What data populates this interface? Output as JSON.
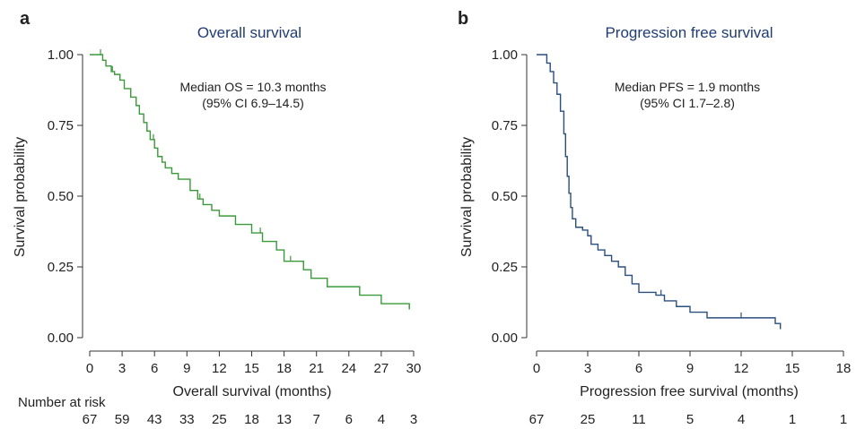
{
  "chart_data": [
    {
      "type": "line",
      "panel_label": "a",
      "title": "Overall survival",
      "xlabel": "Overall survival (months)",
      "ylabel": "Survival probability",
      "xlim": [
        0,
        30
      ],
      "ylim": [
        0,
        1
      ],
      "x_ticks": [
        "0",
        "3",
        "6",
        "9",
        "12",
        "15",
        "18",
        "21",
        "24",
        "27",
        "30"
      ],
      "y_ticks": [
        "0.00",
        "0.25",
        "0.50",
        "0.75",
        "1.00"
      ],
      "grid": false,
      "color": "#3a9a3a",
      "annotation": [
        "Median OS = 10.3 months",
        "(95% CI 6.9–14.5)"
      ],
      "risk_table_label": "Number at risk",
      "at_risk": [
        "67",
        "59",
        "43",
        "33",
        "25",
        "18",
        "13",
        "7",
        "6",
        "4",
        "3"
      ],
      "series": [
        {
          "x": [
            0,
            1.2,
            1.5,
            2.0,
            2.3,
            2.8,
            3.2,
            3.8,
            4.3,
            4.6,
            5.0,
            5.3,
            5.6,
            6.0,
            6.3,
            6.7,
            7.0,
            7.6,
            8.2,
            9.3,
            10.0,
            10.5,
            11.3,
            12.0,
            13.5,
            15.0,
            16.0,
            17.3,
            18.0,
            19.8,
            20.5,
            22.0,
            25.0,
            27.0,
            29.6
          ],
          "y": [
            1.0,
            0.98,
            0.96,
            0.94,
            0.93,
            0.91,
            0.88,
            0.85,
            0.82,
            0.79,
            0.76,
            0.73,
            0.7,
            0.67,
            0.64,
            0.62,
            0.6,
            0.58,
            0.56,
            0.52,
            0.49,
            0.47,
            0.45,
            0.43,
            0.4,
            0.37,
            0.34,
            0.31,
            0.27,
            0.24,
            0.21,
            0.18,
            0.15,
            0.12,
            0.1
          ],
          "censored_x": [
            1.0,
            2.1,
            5.9,
            10.2,
            15.8,
            18.6,
            29.6
          ]
        }
      ]
    },
    {
      "type": "line",
      "panel_label": "b",
      "title": "Progression free survival",
      "xlabel": "Progression free survival (months)",
      "ylabel": "Survival probability",
      "xlim": [
        0,
        18
      ],
      "ylim": [
        0,
        1
      ],
      "x_ticks": [
        "0",
        "3",
        "6",
        "9",
        "12",
        "15",
        "18"
      ],
      "y_ticks": [
        "0.00",
        "0.25",
        "0.50",
        "0.75",
        "1.00"
      ],
      "grid": false,
      "color": "#2a4f7f",
      "annotation": [
        "Median PFS = 1.9 months",
        "(95% CI 1.7–2.8)"
      ],
      "at_risk": [
        "67",
        "25",
        "11",
        "5",
        "4",
        "1",
        "1"
      ],
      "series": [
        {
          "x": [
            0,
            0.6,
            0.8,
            1.0,
            1.2,
            1.4,
            1.6,
            1.7,
            1.8,
            1.9,
            2.0,
            2.1,
            2.3,
            2.7,
            3.0,
            3.2,
            3.6,
            4.0,
            4.4,
            4.8,
            5.2,
            5.6,
            6.0,
            7.0,
            7.5,
            8.2,
            9.0,
            10.0,
            14.0,
            14.3
          ],
          "y": [
            1.0,
            0.97,
            0.94,
            0.9,
            0.86,
            0.8,
            0.72,
            0.64,
            0.57,
            0.51,
            0.46,
            0.42,
            0.39,
            0.38,
            0.36,
            0.33,
            0.31,
            0.29,
            0.27,
            0.25,
            0.22,
            0.19,
            0.16,
            0.15,
            0.13,
            0.11,
            0.09,
            0.07,
            0.05,
            0.03
          ],
          "censored_x": [
            7.3,
            12.0
          ]
        }
      ]
    }
  ]
}
